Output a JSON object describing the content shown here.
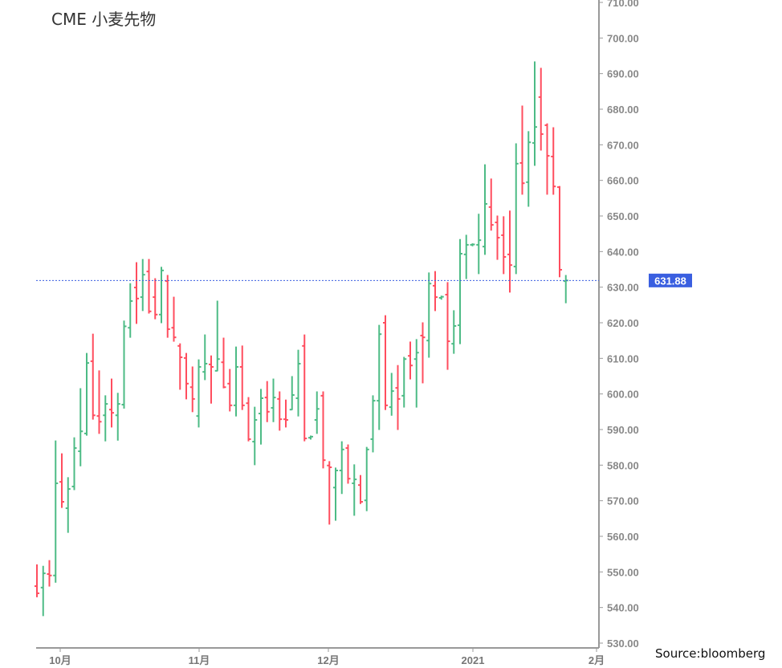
{
  "title": "CME 小麦先物",
  "source": "Source:bloomberg",
  "chart_data": {
    "type": "ohlc",
    "title": "CME 小麦先物",
    "ylim": [
      530,
      710
    ],
    "yticks": [
      "530.00",
      "540.00",
      "550.00",
      "560.00",
      "570.00",
      "580.00",
      "590.00",
      "600.00",
      "610.00",
      "620.00",
      "630.00",
      "640.00",
      "650.00",
      "660.00",
      "670.00",
      "680.00",
      "690.00",
      "700.00",
      "710.00"
    ],
    "xticks": [
      "10月",
      "11月",
      "12月",
      "2021",
      "2月"
    ],
    "last_price": "631.88",
    "colors": {
      "up": "#4dbb85",
      "down": "#ff4d5e",
      "price_line": "#3a5fe0"
    },
    "bar_fields": [
      "open",
      "high",
      "low",
      "close"
    ],
    "bars": [
      [
        546,
        552,
        543,
        544
      ],
      [
        545.6,
        551.6,
        537.7,
        549.6
      ],
      [
        549.4,
        553.2,
        546,
        549
      ],
      [
        549,
        586.8,
        547.1,
        574.9
      ],
      [
        575.3,
        583.2,
        568.1,
        569.7
      ],
      [
        567.9,
        576.5,
        561.1,
        573.3
      ],
      [
        574,
        587.7,
        573.1,
        584.8
      ],
      [
        583.9,
        601.5,
        579.8,
        589.5
      ],
      [
        588.9,
        611.4,
        588.4,
        608.7
      ],
      [
        609.2,
        616.8,
        592.9,
        594
      ],
      [
        593.8,
        606.5,
        588.9,
        592.2
      ],
      [
        594,
        599.5,
        586.8,
        597.2
      ],
      [
        595.6,
        604.2,
        590.7,
        594.7
      ],
      [
        594,
        600.2,
        587,
        597.2
      ],
      [
        597,
        620.5,
        596,
        619
      ],
      [
        618.6,
        631,
        615.9,
        626.1
      ],
      [
        629.9,
        636.9,
        619.8,
        626.8
      ],
      [
        627.2,
        637.8,
        623.4,
        633.5
      ],
      [
        634.4,
        637.8,
        622.7,
        623.2
      ],
      [
        627.2,
        632.4,
        621.1,
        622.3
      ],
      [
        622.3,
        635.6,
        620,
        634.7
      ],
      [
        631.7,
        633.3,
        615.9,
        618.2
      ],
      [
        618.6,
        627.2,
        614.8,
        615.9
      ],
      [
        613.5,
        614.1,
        601.3,
        610.3
      ],
      [
        610.1,
        611.4,
        598.6,
        602.9
      ],
      [
        601.9,
        607.6,
        595,
        598.6
      ],
      [
        593.8,
        609.6,
        590.7,
        607.6
      ],
      [
        606.2,
        616.6,
        604,
        608.5
      ],
      [
        608.3,
        610.7,
        597.4,
        607.6
      ],
      [
        606.5,
        626.1,
        606.5,
        609.8
      ],
      [
        608.9,
        615.7,
        601.7,
        601.9
      ],
      [
        602.9,
        606.9,
        595.2,
        596.8
      ],
      [
        596.8,
        613.2,
        593.8,
        607.6
      ],
      [
        607.6,
        613.5,
        595.6,
        596.8
      ],
      [
        597.4,
        599,
        586.8,
        587.3
      ],
      [
        586.6,
        596.3,
        580.1,
        592.7
      ],
      [
        594.5,
        601.3,
        585.9,
        598.8
      ],
      [
        599,
        603.5,
        592.2,
        595
      ],
      [
        596.1,
        604.2,
        592.2,
        599
      ],
      [
        598.6,
        600.6,
        589.8,
        592.9
      ],
      [
        592.9,
        598.3,
        590.7,
        592.7
      ],
      [
        595.6,
        604.9,
        595.6,
        599.7
      ],
      [
        598.8,
        612.3,
        593.8,
        608.5
      ],
      [
        613.5,
        616.6,
        586.8,
        587.5
      ],
      [
        587.7,
        588.2,
        587.3,
        588
      ],
      [
        592.7,
        600.6,
        588.9,
        595.8
      ],
      [
        599.5,
        600.6,
        579.2,
        581.4
      ],
      [
        579.9,
        581,
        563.4,
        579.4
      ],
      [
        573.7,
        579.2,
        564.5,
        578.5
      ],
      [
        578.5,
        586.6,
        572,
        584.4
      ],
      [
        584.8,
        585.7,
        574.9,
        576.2
      ],
      [
        574.9,
        580.1,
        565.9,
        576
      ],
      [
        574.4,
        577.1,
        569.2,
        569.7
      ],
      [
        570.1,
        585,
        567.2,
        584.4
      ],
      [
        587.3,
        599.5,
        583.7,
        598.1
      ],
      [
        598.1,
        619.3,
        590,
        616.8
      ],
      [
        620,
        622,
        595.6,
        596.8
      ],
      [
        596.3,
        605.8,
        594,
        600.8
      ],
      [
        601.7,
        608,
        590,
        598.6
      ],
      [
        599.5,
        610.3,
        596.3,
        609.8
      ],
      [
        610.7,
        614.6,
        604.2,
        608
      ],
      [
        609.8,
        615.3,
        596.3,
        611.6
      ],
      [
        616.4,
        620,
        603.1,
        615.9
      ],
      [
        615,
        634,
        610.3,
        631
      ],
      [
        630.4,
        634.4,
        623.4,
        627.2
      ],
      [
        627,
        627.5,
        626.6,
        627.3
      ],
      [
        627.9,
        631.3,
        606.9,
        614.8
      ],
      [
        614.1,
        623.4,
        611.4,
        619.1
      ],
      [
        619.3,
        643.4,
        614.1,
        639.4
      ],
      [
        639.2,
        644.6,
        632.4,
        641.9
      ],
      [
        641.9,
        642.2,
        641.6,
        642
      ],
      [
        641.9,
        650.5,
        633.8,
        643.2
      ],
      [
        641.4,
        664.4,
        639.2,
        653.4
      ],
      [
        652.5,
        660.4,
        646,
        647.5
      ],
      [
        648.2,
        650,
        637.8,
        643.9
      ],
      [
        644.6,
        649.8,
        633.8,
        638.5
      ],
      [
        639.2,
        651.4,
        628.6,
        636.2
      ],
      [
        635.8,
        670.3,
        633.8,
        664.7
      ],
      [
        664.9,
        680.9,
        656.1,
        659.2
      ],
      [
        659.5,
        673.7,
        652.7,
        670.7
      ],
      [
        670.5,
        693.3,
        664.2,
        675
      ],
      [
        683.4,
        691.5,
        668.5,
        673
      ],
      [
        675.5,
        675.9,
        656.1,
        666.9
      ],
      [
        666.7,
        674.8,
        656.1,
        658.3
      ],
      [
        658.1,
        658.3,
        632.9,
        634.9
      ],
      [
        631.7,
        633.3,
        625.6,
        631.88
      ]
    ]
  }
}
